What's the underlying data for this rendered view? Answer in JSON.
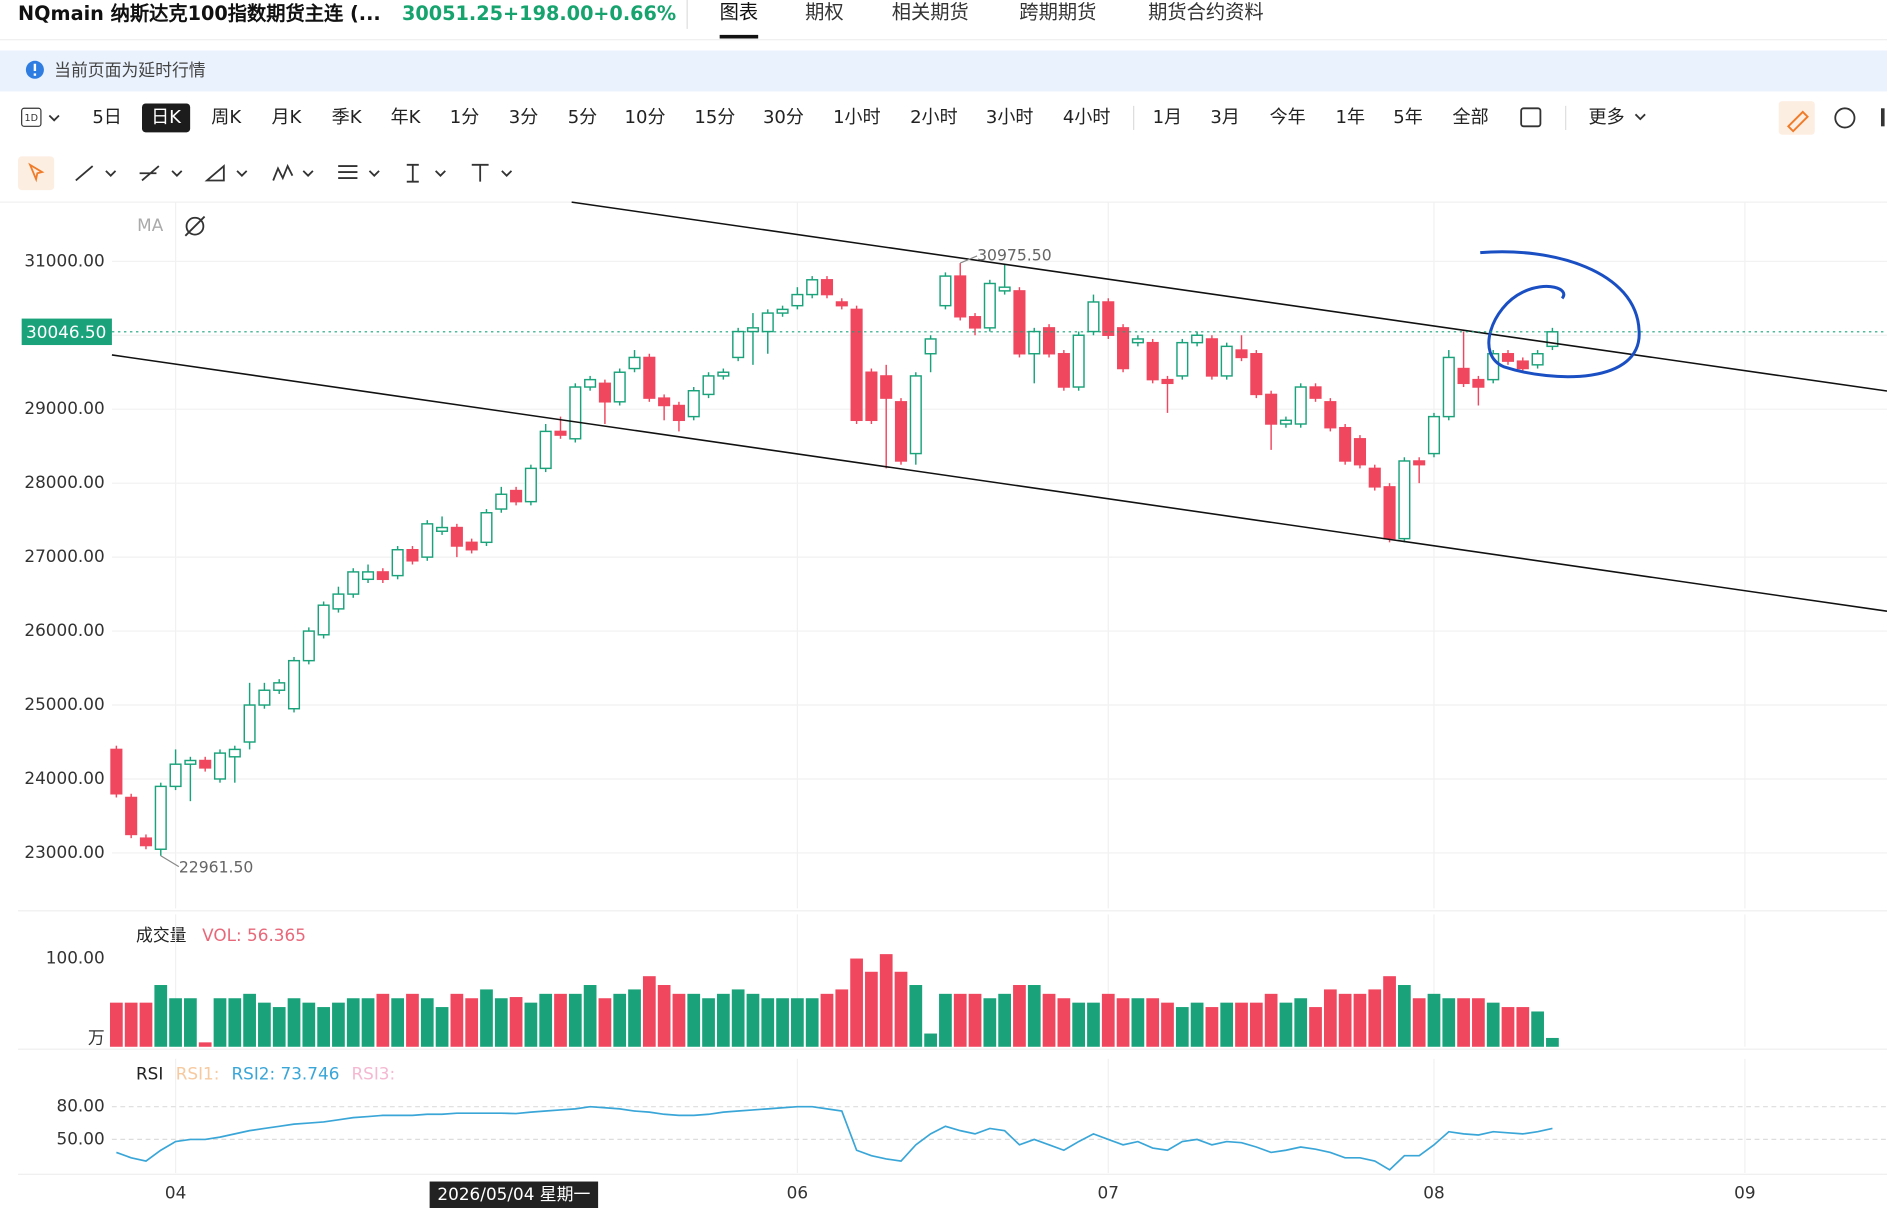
{
  "header": {
    "title": "NQmain 纳斯达克100指数期货主连 (...",
    "price": "30051.25",
    "change": "+198.00",
    "change_pct": "+0.66%",
    "tabs": [
      "图表",
      "期权",
      "相关期货",
      "跨期期货",
      "期货合约资料"
    ]
  },
  "notice": "当前页面为延时行情",
  "toolbar": {
    "interval_icon": "1D",
    "periods": [
      "5日",
      "日K",
      "周K",
      "月K",
      "季K",
      "年K",
      "1分",
      "3分",
      "5分",
      "10分",
      "15分",
      "30分",
      "1小时",
      "2小时",
      "3小时",
      "4小时"
    ],
    "ranges": [
      "1月",
      "3月",
      "今年",
      "1年",
      "5年",
      "全部"
    ],
    "more": "更多"
  },
  "chart_data": [
    {
      "type": "candlestick",
      "indicator": "MA",
      "up_color": "#1aa37a",
      "down_color": "#f0475f",
      "xlim": [
        -0.3,
        119.6
      ],
      "xticks": [
        {
          "value": 4,
          "label": "04"
        },
        {
          "value": 46,
          "label": "06"
        },
        {
          "value": 67,
          "label": "07"
        },
        {
          "value": 89,
          "label": "08"
        },
        {
          "value": 110,
          "label": "09"
        }
      ],
      "ylim": [
        22250,
        31800
      ],
      "yticks": [
        {
          "value": 23000,
          "label": "23000.00"
        },
        {
          "value": 24000,
          "label": "24000.00"
        },
        {
          "value": 25000,
          "label": "25000.00"
        },
        {
          "value": 26000,
          "label": "26000.00"
        },
        {
          "value": 27000,
          "label": "27000.00"
        },
        {
          "value": 28000,
          "label": "28000.00"
        },
        {
          "value": 29000,
          "label": "29000.00"
        },
        {
          "value": 30000,
          "label": "30000.00"
        },
        {
          "value": 31000,
          "label": "31000.00"
        }
      ],
      "grid": true,
      "last_price": {
        "value": 30046.5,
        "label": "30046.50"
      },
      "high_label": "30975.50",
      "low_label": "22961.50",
      "crosshair_label": "2026/05/04 星期一",
      "open": [
        24400,
        23750,
        23200,
        23050,
        23900,
        24200,
        24250,
        24000,
        24300,
        24500,
        25000,
        25200,
        24950,
        25600,
        25950,
        26300,
        26500,
        26700,
        26800,
        26750,
        27100,
        27000,
        27350,
        27400,
        27200,
        27200,
        27650,
        27900,
        27750,
        28200,
        28700,
        28600,
        29300,
        29350,
        29100,
        29550,
        29700,
        29150,
        29050,
        28900,
        29200,
        29450,
        29700,
        30050,
        30050,
        30300,
        30400,
        30550,
        30750,
        30450,
        30350,
        29500,
        29450,
        29100,
        28400,
        29750,
        30400,
        30800,
        30250,
        30100,
        30600,
        30600,
        29750,
        30100,
        29750,
        29300,
        30050,
        30450,
        30100,
        29900,
        29900,
        29400,
        29450,
        29900,
        29950,
        29450,
        29800,
        29750,
        29200,
        28800,
        28800,
        29300,
        29100,
        28750,
        28600,
        28200,
        27950,
        27250,
        28300,
        28400,
        28900,
        29550,
        29400,
        29400,
        29750,
        29650,
        29600,
        29850
      ],
      "high": [
        24450,
        23800,
        23250,
        23950,
        24400,
        24300,
        24300,
        24400,
        24450,
        25300,
        25300,
        25350,
        25650,
        26050,
        26400,
        26600,
        26850,
        26900,
        26850,
        27150,
        27150,
        27500,
        27550,
        27450,
        27250,
        27650,
        27950,
        27950,
        28250,
        28800,
        28900,
        29350,
        29450,
        29400,
        29550,
        29800,
        29750,
        29200,
        29100,
        29300,
        29500,
        29550,
        30100,
        30300,
        30350,
        30400,
        30650,
        30800,
        30800,
        30500,
        30400,
        29550,
        29600,
        29150,
        29500,
        30000,
        30850,
        30975.5,
        30300,
        30750,
        30950,
        30650,
        30100,
        30150,
        29800,
        30050,
        30550,
        30500,
        30150,
        30000,
        29950,
        29450,
        29950,
        30050,
        30000,
        29900,
        30000,
        29800,
        29250,
        28900,
        29350,
        29350,
        29150,
        28800,
        28650,
        28250,
        28000,
        28350,
        28350,
        28950,
        29800,
        30050,
        29450,
        29800,
        29800,
        29700,
        29800,
        30100
      ],
      "low": [
        23750,
        23200,
        23050,
        22961.5,
        23850,
        23700,
        24100,
        23950,
        23950,
        24400,
        24950,
        25150,
        24900,
        25550,
        25900,
        26250,
        26450,
        26650,
        26650,
        26700,
        26900,
        26950,
        27300,
        27000,
        27050,
        27150,
        27600,
        27700,
        27700,
        28150,
        28600,
        28550,
        29250,
        28800,
        29050,
        29500,
        29100,
        28850,
        28700,
        28850,
        29150,
        29400,
        29650,
        29600,
        29750,
        30250,
        30350,
        30500,
        30500,
        30350,
        28800,
        28800,
        28200,
        28250,
        28250,
        29500,
        30350,
        30200,
        30000,
        30050,
        30550,
        29700,
        29350,
        29700,
        29250,
        29250,
        30000,
        29950,
        29500,
        29850,
        29350,
        28950,
        29400,
        29850,
        29400,
        29400,
        29650,
        29150,
        28450,
        28750,
        28750,
        29100,
        28700,
        28250,
        28200,
        27900,
        27200,
        27200,
        28000,
        28350,
        28850,
        29300,
        29050,
        29350,
        29600,
        29500,
        29550,
        29800
      ],
      "close": [
        23800,
        23250,
        23100,
        23900,
        24200,
        24250,
        24150,
        24350,
        24400,
        25000,
        25200,
        25300,
        25600,
        26000,
        26350,
        26500,
        26800,
        26800,
        26700,
        27100,
        26950,
        27450,
        27400,
        27150,
        27100,
        27600,
        27850,
        27750,
        28200,
        28700,
        28650,
        29300,
        29400,
        29100,
        29500,
        29700,
        29150,
        29050,
        28850,
        29250,
        29450,
        29500,
        30050,
        30100,
        30300,
        30350,
        30550,
        30750,
        30550,
        30400,
        28850,
        28850,
        29150,
        28300,
        29450,
        29950,
        30800,
        30250,
        30100,
        30700,
        30650,
        29750,
        30050,
        29750,
        29300,
        30000,
        30450,
        30000,
        29550,
        29950,
        29400,
        29350,
        29900,
        30000,
        29450,
        29850,
        29700,
        29200,
        28800,
        28850,
        29300,
        29150,
        28750,
        28300,
        28250,
        27950,
        27250,
        28300,
        28250,
        28900,
        29700,
        29350,
        29300,
        29750,
        29650,
        29550,
        29750,
        30046.5
      ]
    },
    {
      "type": "bar",
      "title": "成交量",
      "legend": "VOL: 56.365",
      "unit": "万",
      "ylim": [
        0,
        150
      ],
      "yticks": [
        {
          "value": 100,
          "label": "100.00"
        }
      ],
      "values": [
        50,
        50,
        50,
        70,
        55,
        55,
        5,
        55,
        55,
        60,
        50,
        45,
        55,
        50,
        45,
        50,
        55,
        55,
        60,
        55,
        60,
        55,
        45,
        60,
        55,
        65,
        55,
        56.365,
        50,
        60,
        60,
        60,
        70,
        55,
        60,
        65,
        80,
        70,
        60,
        60,
        55,
        60,
        65,
        60,
        55,
        55,
        55,
        55,
        60,
        65,
        100,
        85,
        105,
        85,
        70,
        15,
        60,
        60,
        60,
        55,
        60,
        70,
        70,
        60,
        55,
        50,
        50,
        60,
        55,
        55,
        55,
        50,
        45,
        50,
        45,
        50,
        50,
        50,
        60,
        50,
        55,
        45,
        65,
        60,
        60,
        65,
        80,
        70,
        55,
        60,
        55,
        55,
        55,
        50,
        45,
        45,
        40,
        10
      ]
    },
    {
      "type": "line",
      "title": "RSI",
      "color": "#3aa6d8",
      "ylim": [
        19,
        124
      ],
      "yticks": [
        {
          "value": 50,
          "label": "50.00"
        },
        {
          "value": 80,
          "label": "80.00"
        }
      ],
      "legend_entries": [
        {
          "name": "RSI1:",
          "color": "#f6c99f"
        },
        {
          "name": "RSI2: 73.746",
          "color": "#3aa6d8"
        },
        {
          "name": "RSI3:",
          "color": "#f4b9d1"
        }
      ],
      "values": [
        38,
        33,
        30,
        40,
        48,
        50,
        50,
        52,
        55,
        58,
        60,
        62,
        64,
        65,
        66,
        68,
        70,
        71,
        72,
        72,
        72,
        73,
        73,
        74,
        74,
        74,
        74,
        73.746,
        75,
        76,
        77,
        78,
        80,
        79,
        78,
        76,
        75,
        73,
        72,
        72,
        73,
        75,
        76,
        77,
        78,
        79,
        80,
        80,
        78,
        76,
        40,
        35,
        32,
        30,
        45,
        55,
        62,
        58,
        55,
        60,
        58,
        45,
        50,
        45,
        40,
        48,
        55,
        50,
        45,
        48,
        42,
        40,
        48,
        50,
        45,
        48,
        47,
        43,
        38,
        40,
        43,
        41,
        38,
        33,
        33,
        30,
        22,
        35,
        35,
        45,
        57,
        55,
        54,
        57,
        56,
        55,
        57,
        60
      ]
    }
  ]
}
